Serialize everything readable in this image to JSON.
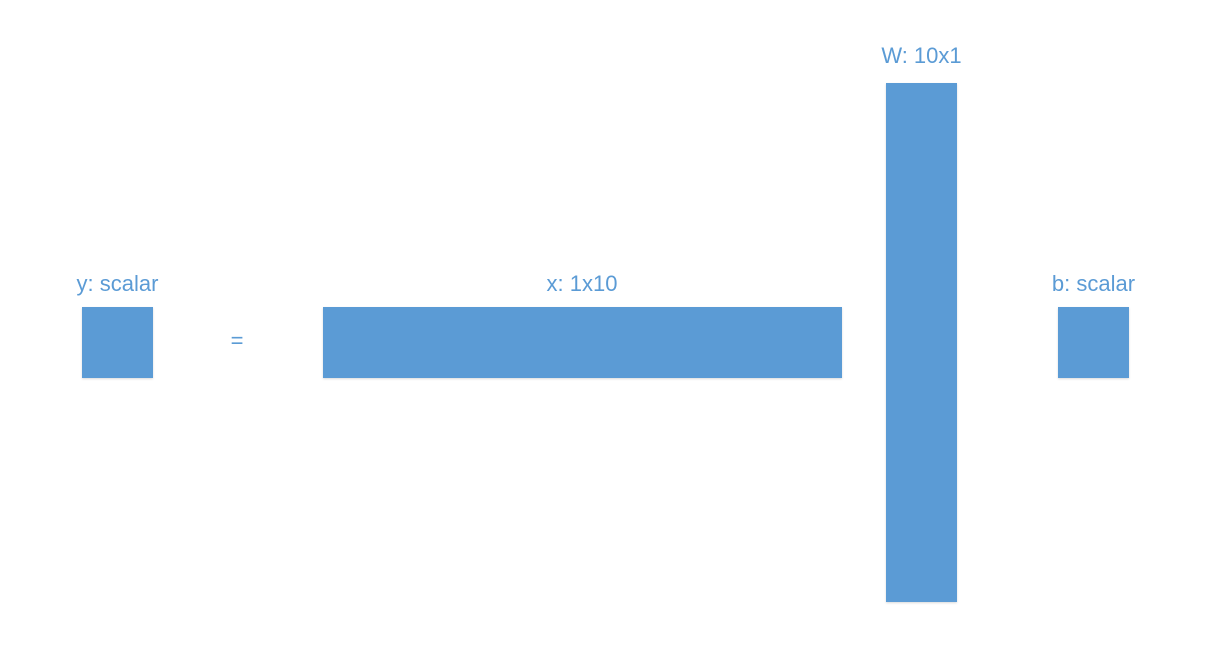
{
  "colors": {
    "block_fill": "#5b9bd5",
    "label_text": "#5b9bd5"
  },
  "diagram": {
    "y": {
      "label": "y: scalar"
    },
    "equals": "=",
    "x": {
      "label": "x: 1x10"
    },
    "W": {
      "label": "W: 10x1"
    },
    "b": {
      "label": "b: scalar"
    }
  }
}
